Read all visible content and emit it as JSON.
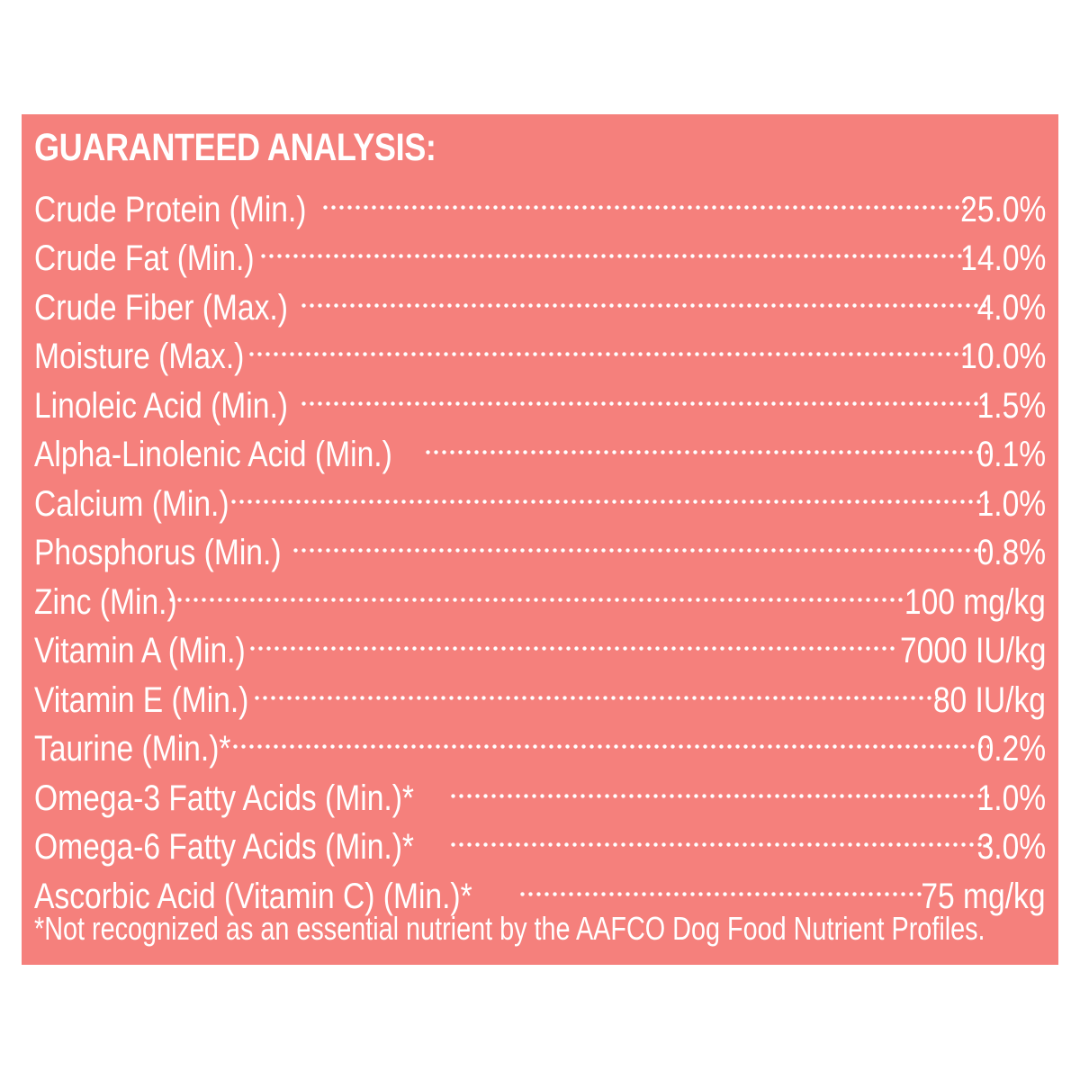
{
  "panel_color": "#f5807c",
  "text_color": "#ffffff",
  "title": "GUARANTEED ANALYSIS:",
  "rows": [
    {
      "label": "Crude Protein (Min.)",
      "value": "25.0%"
    },
    {
      "label": "Crude Fat (Min.)",
      "value": "14.0%"
    },
    {
      "label": "Crude Fiber (Max.)",
      "value": "4.0%"
    },
    {
      "label": "Moisture (Max.)",
      "value": "10.0%"
    },
    {
      "label": "Linoleic Acid (Min.)",
      "value": "1.5%"
    },
    {
      "label": "Alpha-Linolenic Acid (Min.)",
      "value": "0.1%"
    },
    {
      "label": "Calcium (Min.)",
      "value": "1.0%"
    },
    {
      "label": "Phosphorus (Min.)",
      "value": "0.8%"
    },
    {
      "label": "Zinc (Min.)",
      "value": "100 mg/kg"
    },
    {
      "label": "Vitamin A (Min.)",
      "value": "7000 IU/kg"
    },
    {
      "label": "Vitamin E (Min.)",
      "value": "80 IU/kg"
    },
    {
      "label": "Taurine (Min.)*",
      "value": "0.2%"
    },
    {
      "label": "Omega-3 Fatty Acids (Min.)*",
      "value": "1.0%"
    },
    {
      "label": "Omega-6 Fatty Acids (Min.)*",
      "value": "3.0%"
    },
    {
      "label": "Ascorbic Acid (Vitamin C) (Min.)*",
      "value": "75 mg/kg"
    }
  ],
  "footnote": "*Not recognized as an essential nutrient by the AAFCO Dog Food Nutrient Profiles."
}
